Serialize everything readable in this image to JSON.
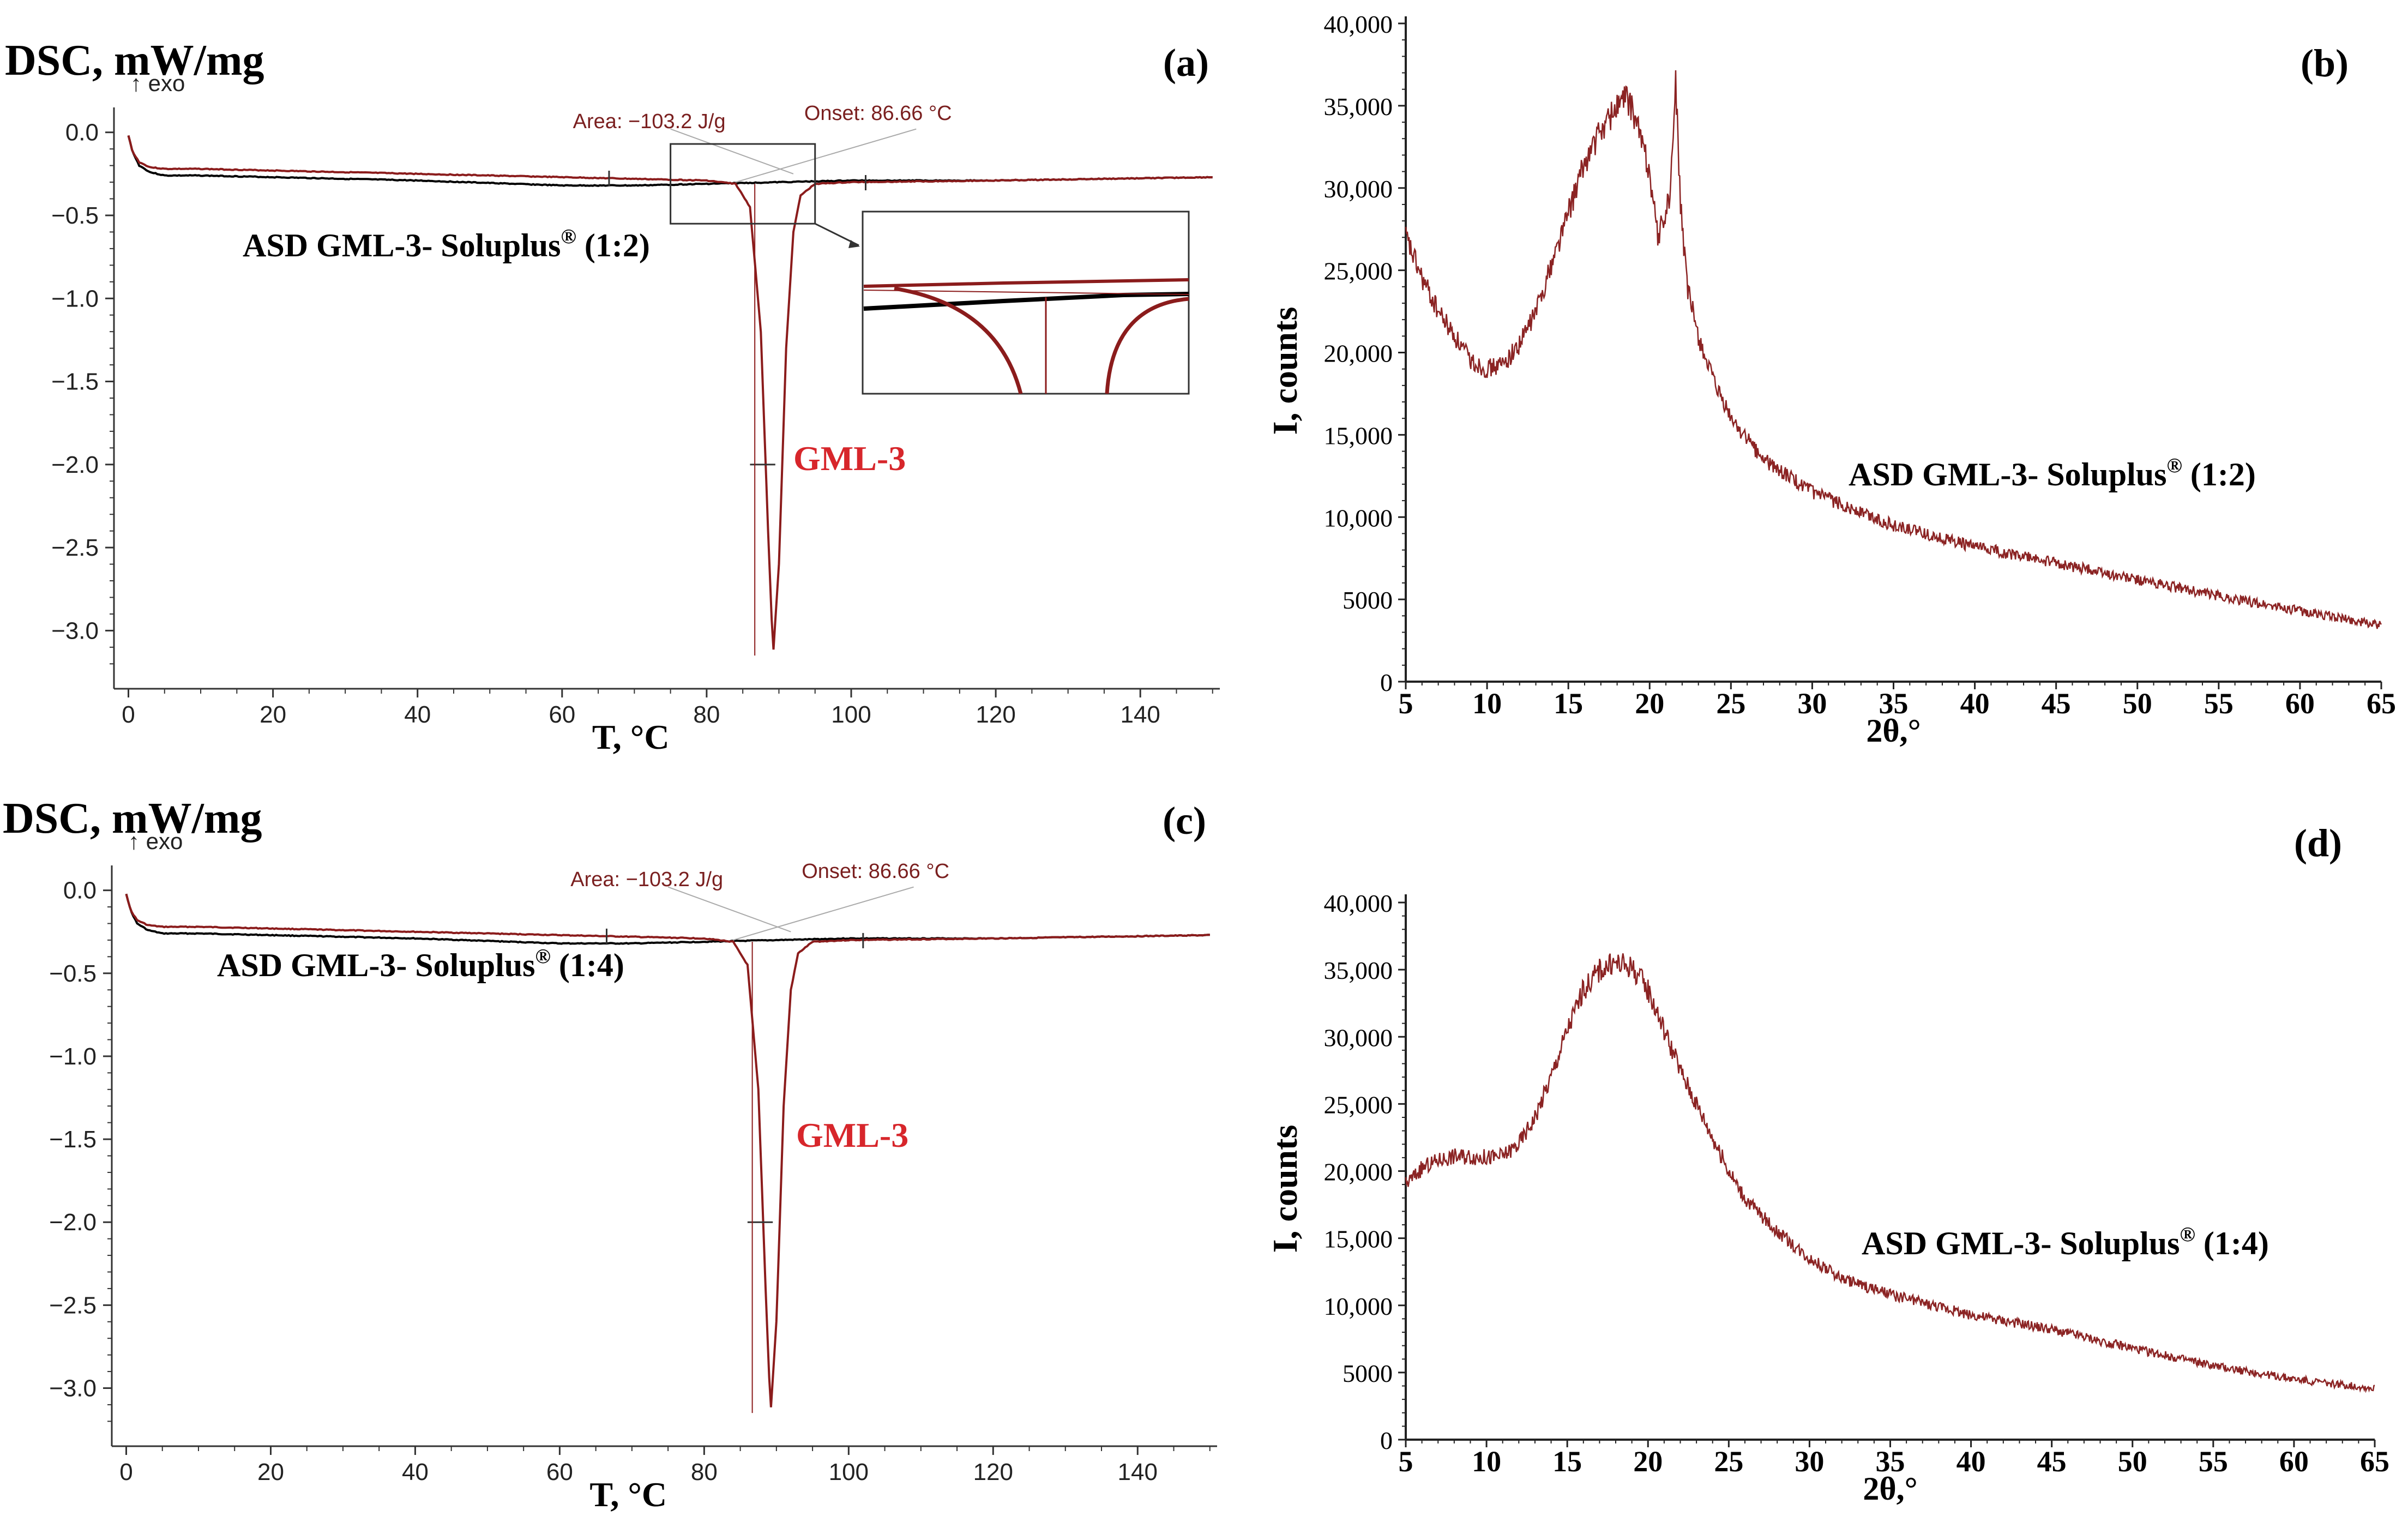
{
  "colors": {
    "sample": "#000000",
    "gml3": "#8b1c1c",
    "gml3_label": "#d7262b",
    "annotation": "#7a1f1f",
    "xrd_trace": "#8b2323"
  },
  "chart_data": [
    {
      "id": "a",
      "type": "line",
      "panel_label": "(a)",
      "ylabel": "DSC, mW/mg",
      "xlabel": "T, °C",
      "exo_label": "↑ exo",
      "xlim": [
        -2,
        151
      ],
      "ylim": [
        -3.35,
        0.15
      ],
      "xticks": [
        0,
        20,
        40,
        60,
        80,
        100,
        120,
        140
      ],
      "xtick_labels": [
        "0",
        "20",
        "40",
        "60",
        "80",
        "100",
        "120",
        "140"
      ],
      "yticks": [
        0.0,
        -0.5,
        -1.0,
        -1.5,
        -2.0,
        -2.5,
        -3.0
      ],
      "ytick_labels": [
        "0.0",
        "−0.5",
        "−1.0",
        "−1.5",
        "−2.0",
        "−2.5",
        "−3.0"
      ],
      "series": [
        {
          "name": "ASD GML-3- Soluplus® (1:2)",
          "x": [
            0,
            0.6,
            1.5,
            3,
            5,
            10,
            20,
            40,
            60,
            70,
            80,
            90,
            100,
            120,
            150
          ],
          "y": [
            -0.02,
            -0.12,
            -0.2,
            -0.24,
            -0.26,
            -0.26,
            -0.27,
            -0.29,
            -0.32,
            -0.32,
            -0.31,
            -0.3,
            -0.29,
            -0.29,
            -0.27
          ]
        },
        {
          "name": "GML-3",
          "x": [
            0,
            0.6,
            1.5,
            3,
            5,
            10,
            20,
            40,
            60,
            70,
            80,
            84,
            86,
            87.5,
            88.5,
            89.2,
            90,
            91,
            92,
            93,
            95,
            100,
            120,
            150
          ],
          "y": [
            -0.02,
            -0.12,
            -0.18,
            -0.21,
            -0.22,
            -0.22,
            -0.23,
            -0.25,
            -0.27,
            -0.28,
            -0.29,
            -0.31,
            -0.45,
            -1.2,
            -2.4,
            -3.15,
            -2.6,
            -1.3,
            -0.6,
            -0.38,
            -0.31,
            -0.3,
            -0.29,
            -0.27
          ]
        }
      ],
      "series_labels": {
        "sample": "ASD GML-3- Soluplus",
        "sample_ratio": " (1:2)",
        "reg": "®",
        "gml3": "GML-3"
      },
      "annotations": {
        "area": "Area: −103.2 J/g",
        "onset": "Onset: 86.66 °C"
      },
      "inset": true
    },
    {
      "id": "b",
      "type": "line",
      "panel_label": "(b)",
      "ylabel": "I, counts",
      "xlabel": "2θ,°",
      "xlim": [
        5,
        65
      ],
      "ylim": [
        0,
        40000
      ],
      "xticks": [
        5,
        10,
        15,
        20,
        25,
        30,
        35,
        40,
        45,
        50,
        55,
        60,
        65
      ],
      "xtick_labels": [
        "5",
        "10",
        "15",
        "20",
        "25",
        "30",
        "35",
        "40",
        "45",
        "50",
        "55",
        "60",
        "65"
      ],
      "yticks": [
        0,
        5000,
        10000,
        15000,
        20000,
        25000,
        30000,
        35000,
        40000
      ],
      "ytick_labels": [
        "0",
        "5000",
        "10,000",
        "15,000",
        "20,000",
        "25,000",
        "30,000",
        "35,000",
        "40,000"
      ],
      "series": [
        {
          "name": "ASD GML-3- Soluplus® (1:2)",
          "x": [
            5,
            6,
            7,
            8,
            9,
            10,
            11,
            12,
            13,
            14,
            15,
            16,
            17,
            18,
            18.6,
            19.2,
            20,
            20.5,
            21,
            21.3,
            21.6,
            21.9,
            22.3,
            23,
            24,
            25,
            27,
            30,
            35,
            40,
            45,
            50,
            55,
            60,
            65
          ],
          "y": [
            27000,
            24500,
            22500,
            21000,
            19500,
            19000,
            19300,
            20500,
            22500,
            25500,
            28500,
            31500,
            33500,
            35000,
            35500,
            34000,
            31000,
            27000,
            28500,
            30000,
            36500,
            29000,
            24000,
            21000,
            18000,
            16000,
            13500,
            11500,
            9500,
            8200,
            7200,
            6200,
            5200,
            4300,
            3400
          ]
        }
      ],
      "series_labels": {
        "sample": "ASD GML-3- Soluplus",
        "sample_ratio": " (1:2)",
        "reg": "®"
      }
    },
    {
      "id": "c",
      "type": "line",
      "panel_label": "(c)",
      "ylabel": "DSC, mW/mg",
      "xlabel": "T, °C",
      "exo_label": "↑ exo",
      "xlim": [
        -2,
        151
      ],
      "ylim": [
        -3.35,
        0.15
      ],
      "xticks": [
        0,
        20,
        40,
        60,
        80,
        100,
        120,
        140
      ],
      "xtick_labels": [
        "0",
        "20",
        "40",
        "60",
        "80",
        "100",
        "120",
        "140"
      ],
      "yticks": [
        0.0,
        -0.5,
        -1.0,
        -1.5,
        -2.0,
        -2.5,
        -3.0
      ],
      "ytick_labels": [
        "0.0",
        "−0.5",
        "−1.0",
        "−1.5",
        "−2.0",
        "−2.5",
        "−3.0"
      ],
      "series": [
        {
          "name": "ASD GML-3- Soluplus® (1:4)",
          "x": [
            0,
            0.6,
            1.5,
            3,
            5,
            10,
            20,
            40,
            60,
            70,
            80,
            90,
            100,
            120,
            150
          ],
          "y": [
            -0.02,
            -0.12,
            -0.2,
            -0.24,
            -0.26,
            -0.26,
            -0.27,
            -0.29,
            -0.32,
            -0.32,
            -0.31,
            -0.3,
            -0.29,
            -0.29,
            -0.27
          ]
        },
        {
          "name": "GML-3",
          "x": [
            0,
            0.6,
            1.5,
            3,
            5,
            10,
            20,
            40,
            60,
            70,
            80,
            84,
            86,
            87.5,
            88.5,
            89.2,
            90,
            91,
            92,
            93,
            95,
            100,
            120,
            150
          ],
          "y": [
            -0.02,
            -0.12,
            -0.18,
            -0.21,
            -0.22,
            -0.22,
            -0.23,
            -0.25,
            -0.27,
            -0.28,
            -0.29,
            -0.31,
            -0.45,
            -1.2,
            -2.4,
            -3.15,
            -2.6,
            -1.3,
            -0.6,
            -0.38,
            -0.31,
            -0.3,
            -0.29,
            -0.27
          ]
        }
      ],
      "series_labels": {
        "sample": "ASD GML-3- Soluplus",
        "sample_ratio": " (1:4)",
        "reg": "®",
        "gml3": "GML-3"
      },
      "annotations": {
        "area": "Area: −103.2 J/g",
        "onset": "Onset: 86.66 °C"
      },
      "inset": false
    },
    {
      "id": "d",
      "type": "line",
      "panel_label": "(d)",
      "ylabel": "I, counts",
      "xlabel": "2θ,°",
      "xlim": [
        5,
        65
      ],
      "ylim": [
        0,
        40000
      ],
      "xticks": [
        5,
        10,
        15,
        20,
        25,
        30,
        35,
        40,
        45,
        50,
        55,
        60,
        65
      ],
      "xtick_labels": [
        "5",
        "10",
        "15",
        "20",
        "25",
        "30",
        "35",
        "40",
        "45",
        "50",
        "55",
        "60",
        "65"
      ],
      "yticks": [
        0,
        5000,
        10000,
        15000,
        20000,
        25000,
        30000,
        35000,
        40000
      ],
      "ytick_labels": [
        "0",
        "5000",
        "10,000",
        "15,000",
        "20,000",
        "25,000",
        "30,000",
        "35,000",
        "40,000"
      ],
      "series": [
        {
          "name": "ASD GML-3- Soluplus® (1:4)",
          "x": [
            5,
            6,
            7,
            8,
            9,
            10,
            11,
            12,
            13,
            14,
            15,
            16,
            17,
            18,
            19,
            20,
            21,
            22,
            23,
            24,
            25,
            26,
            28,
            30,
            32,
            35,
            40,
            45,
            50,
            55,
            60,
            65
          ],
          "y": [
            19000,
            20200,
            20800,
            21100,
            21100,
            21000,
            21100,
            22000,
            24000,
            27000,
            30500,
            33500,
            35000,
            35500,
            35200,
            33500,
            30500,
            27500,
            25000,
            22500,
            20000,
            18000,
            15500,
            13500,
            12000,
            10800,
            9300,
            8200,
            6800,
            5500,
            4500,
            3800
          ]
        }
      ],
      "series_labels": {
        "sample": "ASD GML-3- Soluplus",
        "sample_ratio": " (1:4)",
        "reg": "®"
      }
    }
  ]
}
